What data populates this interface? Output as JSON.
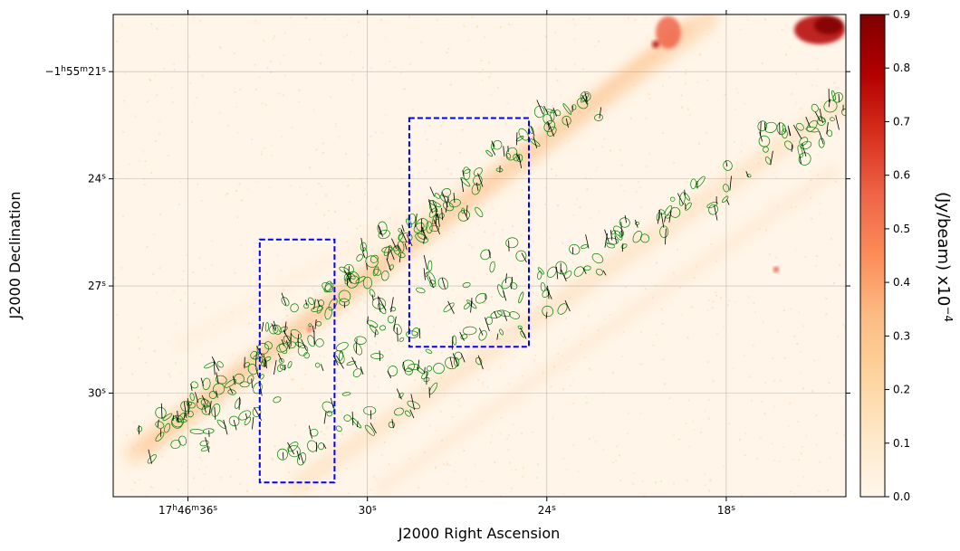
{
  "chart_data": {
    "type": "heatmap",
    "title": "",
    "xlabel": "J2000 Right Ascension",
    "ylabel": "J2000 Declination",
    "x_ticks": [
      {
        "h": "17",
        "m": "46",
        "s": "36",
        "ra_sec": 36
      },
      {
        "s": "30",
        "ra_sec": 30
      },
      {
        "s": "24",
        "ra_sec": 24
      },
      {
        "s": "18",
        "ra_sec": 18
      }
    ],
    "y_ticks": [
      {
        "sign": "−1",
        "m": "55",
        "s": "21",
        "dec_sec": 21
      },
      {
        "s": "24",
        "dec_sec": 24
      },
      {
        "s": "27",
        "dec_sec": 27
      },
      {
        "s": "30",
        "dec_sec": 30
      }
    ],
    "x_range_ra_sec": [
      38.5,
      14.0
    ],
    "y_range_dec_sec": [
      19.4,
      32.9
    ],
    "grid": true,
    "colormap": "OrRd",
    "colorbar": {
      "label": "(Jy/beam) x10",
      "label_exp": "−4",
      "min": 0.0,
      "max": 0.9,
      "ticks": [
        "0.0",
        "0.1",
        "0.2",
        "0.3",
        "0.4",
        "0.5",
        "0.6",
        "0.7",
        "0.8",
        "0.9"
      ],
      "stops": [
        "#fff7ec",
        "#fee8c8",
        "#fdd49e",
        "#fdbb84",
        "#fc8d59",
        "#ef6548",
        "#d7301f",
        "#b30000",
        "#7f0000"
      ]
    },
    "regions": [
      {
        "ra_sec": [
          33.6,
          31.1
        ],
        "dec_sec": [
          25.7,
          32.5
        ],
        "color": "#0000ff",
        "style": "dashed"
      },
      {
        "ra_sec": [
          28.6,
          24.6
        ],
        "dec_sec": [
          22.3,
          28.7
        ],
        "color": "#0000ff",
        "style": "dashed"
      }
    ],
    "contour_color": "#008000",
    "vector_color": "#000000"
  }
}
